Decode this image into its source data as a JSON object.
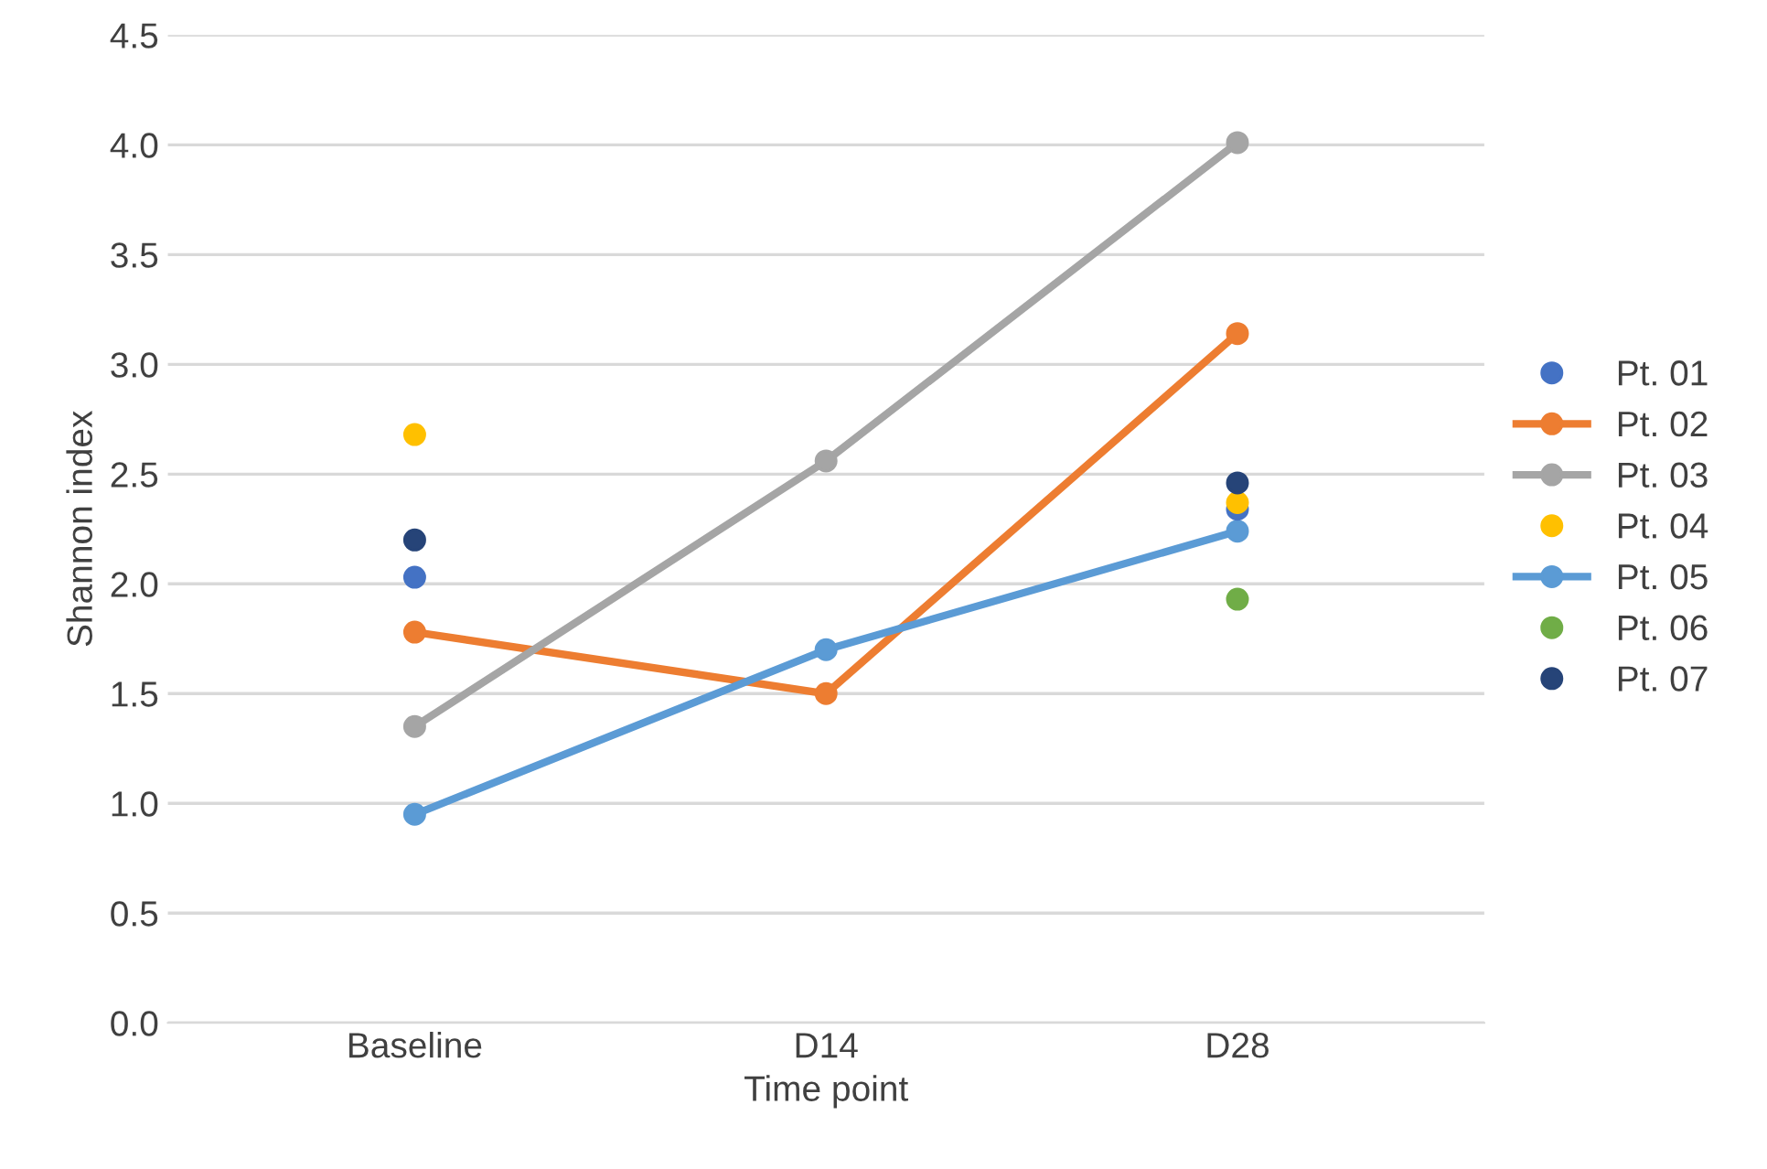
{
  "chart_data": {
    "type": "line",
    "xlabel": "Time point",
    "ylabel": "Shannon index",
    "categories": [
      "Baseline",
      "D14",
      "D28"
    ],
    "series": [
      {
        "name": "Pt. 01",
        "color": "#4472c4",
        "type": "scatter",
        "values": [
          2.03,
          null,
          2.34
        ]
      },
      {
        "name": "Pt. 02",
        "color": "#ed7d31",
        "values": [
          1.78,
          1.5,
          3.14
        ]
      },
      {
        "name": "Pt. 03",
        "color": "#a5a5a5",
        "values": [
          1.35,
          2.56,
          4.01
        ]
      },
      {
        "name": "Pt. 04",
        "color": "#ffc000",
        "type": "scatter",
        "values": [
          2.68,
          null,
          2.37
        ]
      },
      {
        "name": "Pt. 05",
        "color": "#5b9bd5",
        "values": [
          0.95,
          1.7,
          2.24
        ]
      },
      {
        "name": "Pt. 06",
        "color": "#70ad47",
        "type": "scatter",
        "values": [
          null,
          null,
          1.93
        ]
      },
      {
        "name": "Pt. 07",
        "color": "#264478",
        "type": "scatter",
        "values": [
          2.2,
          null,
          2.46
        ]
      }
    ],
    "ylim": [
      0,
      4.5
    ],
    "yticks": [
      {
        "value": 0,
        "label": "0.0"
      },
      0.5,
      {
        "value": 1,
        "label": "1.0"
      },
      1.5,
      {
        "value": 2,
        "label": "2.0"
      },
      2.5,
      {
        "value": 3,
        "label": "3.0"
      },
      3.5,
      {
        "value": 4,
        "label": "4.0"
      },
      4.5
    ],
    "grid": "y",
    "legend": "right",
    "marker": "circle"
  }
}
